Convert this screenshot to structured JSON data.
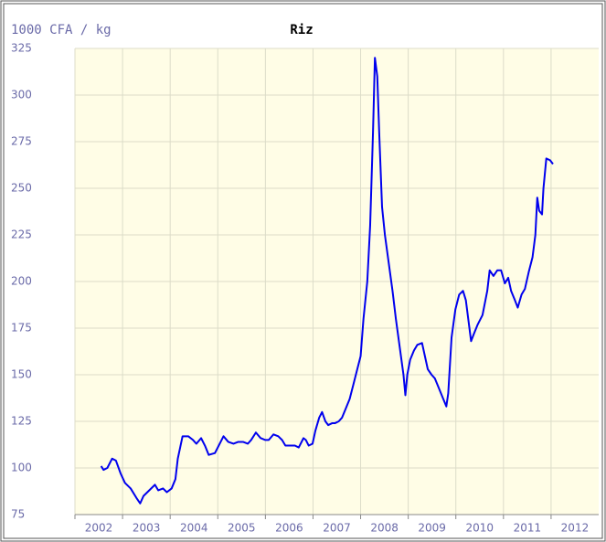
{
  "chart_data": {
    "type": "line",
    "title": "Riz",
    "y_label": "1000 CFA / kg",
    "x": [
      2002.55,
      2002.6,
      2002.68,
      2002.78,
      2002.86,
      2002.96,
      2003.05,
      2003.17,
      2003.29,
      2003.37,
      2003.44,
      2003.56,
      2003.68,
      2003.75,
      2003.85,
      2003.93,
      2004.03,
      2004.11,
      2004.16,
      2004.26,
      2004.38,
      2004.48,
      2004.55,
      2004.65,
      2004.73,
      2004.81,
      2004.94,
      2005.02,
      2005.12,
      2005.22,
      2005.33,
      2005.43,
      2005.53,
      2005.63,
      2005.7,
      2005.8,
      2005.9,
      2006.0,
      2006.07,
      2006.17,
      2006.27,
      2006.35,
      2006.42,
      2006.52,
      2006.62,
      2006.7,
      2006.8,
      2006.85,
      2006.91,
      2006.99,
      2007.05,
      2007.13,
      2007.19,
      2007.26,
      2007.32,
      2007.4,
      2007.46,
      2007.54,
      2007.61,
      2007.69,
      2007.77,
      2007.85,
      2007.93,
      2008.0,
      2008.06,
      2008.14,
      2008.2,
      2008.26,
      2008.3,
      2008.35,
      2008.39,
      2008.45,
      2008.51,
      2008.59,
      2008.67,
      2008.74,
      2008.82,
      2008.9,
      2008.94,
      2008.98,
      2009.04,
      2009.12,
      2009.19,
      2009.29,
      2009.35,
      2009.41,
      2009.49,
      2009.56,
      2009.64,
      2009.72,
      2009.8,
      2009.84,
      2009.91,
      2009.99,
      2010.07,
      2010.15,
      2010.21,
      2010.27,
      2010.32,
      2010.38,
      2010.46,
      2010.56,
      2010.66,
      2010.71,
      2010.79,
      2010.87,
      2010.95,
      2011.03,
      2011.1,
      2011.16,
      2011.24,
      2011.3,
      2011.38,
      2011.45,
      2011.53,
      2011.61,
      2011.67,
      2011.71,
      2011.75,
      2011.81,
      2011.84,
      2011.9,
      2011.98,
      2012.04
    ],
    "series": [
      {
        "name": "Riz",
        "color": "#0000ee",
        "values": [
          101,
          99,
          100,
          105,
          104,
          97,
          92,
          89,
          84,
          81,
          85,
          88,
          91,
          88,
          89,
          87,
          89,
          94,
          105,
          117,
          117,
          115,
          113,
          116,
          112,
          107,
          108,
          112,
          117,
          114,
          113,
          114,
          114,
          113,
          115,
          119,
          116,
          115,
          115,
          118,
          117,
          115,
          112,
          112,
          112,
          111,
          116,
          115,
          112,
          113,
          120,
          127,
          130,
          125,
          123,
          124,
          124,
          125,
          127,
          132,
          137,
          145,
          153,
          160,
          180,
          200,
          230,
          280,
          320,
          310,
          280,
          240,
          225,
          210,
          195,
          180,
          165,
          150,
          139,
          150,
          158,
          163,
          166,
          167,
          160,
          153,
          150,
          148,
          143,
          138,
          133,
          140,
          170,
          185,
          193,
          195,
          190,
          178,
          168,
          172,
          177,
          182,
          195,
          206,
          203,
          206,
          206,
          199,
          202,
          195,
          190,
          186,
          193,
          196,
          205,
          213,
          225,
          245,
          238,
          236,
          250,
          266,
          265,
          263
        ]
      }
    ],
    "xlim": [
      2002,
      2013
    ],
    "xticks": [
      2002,
      2003,
      2004,
      2005,
      2006,
      2007,
      2008,
      2009,
      2010,
      2011,
      2012
    ],
    "ylim": [
      75,
      325
    ],
    "yticks": [
      75,
      100,
      125,
      150,
      175,
      200,
      225,
      250,
      275,
      300,
      325
    ],
    "grid": true
  }
}
